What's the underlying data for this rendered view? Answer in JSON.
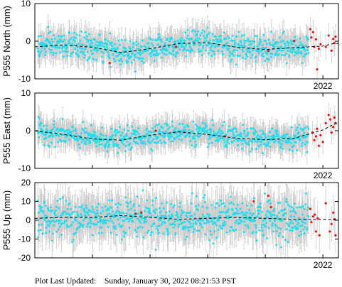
{
  "footer": {
    "label": "Plot Last Updated:",
    "timestamp": "Sunday, January 30, 2022 08:21:53 PST"
  },
  "colors": {
    "observed": "#22ddee",
    "recent": "#ee1111",
    "error_bar": "#cccccc",
    "model": "#000000"
  },
  "chart_data": [
    {
      "type": "scatter",
      "station": "P555",
      "component": "north",
      "ylabel": "P555 North (mm)",
      "ylim": [
        -10,
        10
      ],
      "yticks": [
        -10,
        0,
        10
      ],
      "xrange": [
        2017.0,
        2022.27
      ],
      "xtick_labels": [
        {
          "value": 2022.0,
          "label": "2022"
        }
      ],
      "grid": false,
      "error_bar_mm": 3.2,
      "model": {
        "x": [
          2017.0,
          2017.5,
          2018.0,
          2018.5,
          2019.0,
          2019.5,
          2020.0,
          2020.5,
          2021.0,
          2021.5,
          2022.0,
          2022.2
        ],
        "y": [
          -1.5,
          -1.0,
          -1.6,
          -3.0,
          -2.0,
          -0.6,
          -0.4,
          -1.6,
          -2.2,
          -1.7,
          -1.3,
          -0.6
        ]
      },
      "observed_summary": {
        "x_start": 2017.05,
        "x_end": 2021.75,
        "scatter_sd_mm": 1.7,
        "clip": [
          -8.5,
          8.5
        ]
      },
      "recent_points": {
        "x": [
          2018.3,
          2019.45,
          2021.05,
          2021.5,
          2021.78,
          2021.8,
          2021.83,
          2021.85,
          2021.88,
          2021.9,
          2021.93,
          2021.96,
          2022.05,
          2022.1,
          2022.15,
          2022.18,
          2022.2,
          2022.22
        ],
        "y": [
          -5.8,
          -1.5,
          -2.6,
          0.1,
          3.2,
          1.0,
          2.4,
          -1.5,
          0.5,
          -7.5,
          -2.0,
          -0.8,
          -1.5,
          1.5,
          -2.5,
          0.6,
          -0.5,
          1.2
        ]
      }
    },
    {
      "type": "scatter",
      "station": "P555",
      "component": "east",
      "ylabel": "P555 East (mm)",
      "ylim": [
        -10,
        10
      ],
      "yticks": [
        -10,
        0,
        10
      ],
      "xrange": [
        2017.0,
        2022.27
      ],
      "xtick_labels": [
        {
          "value": 2022.0,
          "label": "2022"
        }
      ],
      "grid": false,
      "error_bar_mm": 3.0,
      "model": {
        "x": [
          2017.0,
          2017.5,
          2018.0,
          2018.5,
          2019.0,
          2019.5,
          2020.0,
          2020.5,
          2021.0,
          2021.5,
          2022.0,
          2022.2
        ],
        "y": [
          0.0,
          -1.0,
          -2.2,
          -2.5,
          -1.2,
          -0.3,
          -1.0,
          -2.0,
          -2.4,
          -2.0,
          0.2,
          1.8
        ]
      },
      "observed_summary": {
        "x_start": 2017.05,
        "x_end": 2021.75,
        "scatter_sd_mm": 1.4,
        "clip": [
          -6.5,
          6.5
        ]
      },
      "recent_points": {
        "x": [
          2019.1,
          2020.3,
          2021.82,
          2021.85,
          2021.88,
          2021.9,
          2021.93,
          2021.96,
          2022.0,
          2022.05,
          2022.1,
          2022.13,
          2022.15,
          2022.18,
          2022.2,
          2022.22
        ],
        "y": [
          0.0,
          -1.5,
          -0.5,
          -2.5,
          -1.5,
          0.5,
          -4.0,
          -1.2,
          -3.0,
          2.0,
          4.2,
          3.0,
          -0.5,
          1.0,
          3.5,
          2.0
        ]
      }
    },
    {
      "type": "scatter",
      "station": "P555",
      "component": "up",
      "ylabel": "P555 Up (mm)",
      "ylim": [
        -20,
        20
      ],
      "yticks": [
        -20,
        -10,
        0,
        10,
        20
      ],
      "xrange": [
        2017.0,
        2022.27
      ],
      "xtick_labels": [
        {
          "value": 2022.0,
          "label": "2022"
        }
      ],
      "grid": false,
      "error_bar_mm": 9.0,
      "model": {
        "x": [
          2017.0,
          2017.5,
          2018.0,
          2018.5,
          2019.0,
          2019.5,
          2020.0,
          2020.5,
          2021.0,
          2021.5,
          2022.0,
          2022.2
        ],
        "y": [
          1.0,
          1.5,
          1.5,
          2.5,
          1.5,
          0.5,
          1.0,
          1.5,
          1.0,
          0.5,
          0.5,
          0.5
        ]
      },
      "observed_summary": {
        "x_start": 2017.05,
        "x_end": 2021.75,
        "scatter_sd_mm": 5.0,
        "clip": [
          -18,
          19
        ]
      },
      "recent_points": {
        "x": [
          2018.75,
          2018.85,
          2020.8,
          2021.05,
          2021.1,
          2021.78,
          2021.8,
          2021.83,
          2021.86,
          2021.88,
          2021.91,
          2021.94,
          2022.05,
          2022.12,
          2022.15,
          2022.18,
          2022.2,
          2022.22
        ],
        "y": [
          3.5,
          4.0,
          10.0,
          13.0,
          7.0,
          6.0,
          -1.0,
          2.0,
          3.0,
          -6.0,
          1.0,
          -8.0,
          9.0,
          -6.0,
          -2.0,
          4.0,
          0.5,
          -8.0
        ]
      }
    }
  ]
}
